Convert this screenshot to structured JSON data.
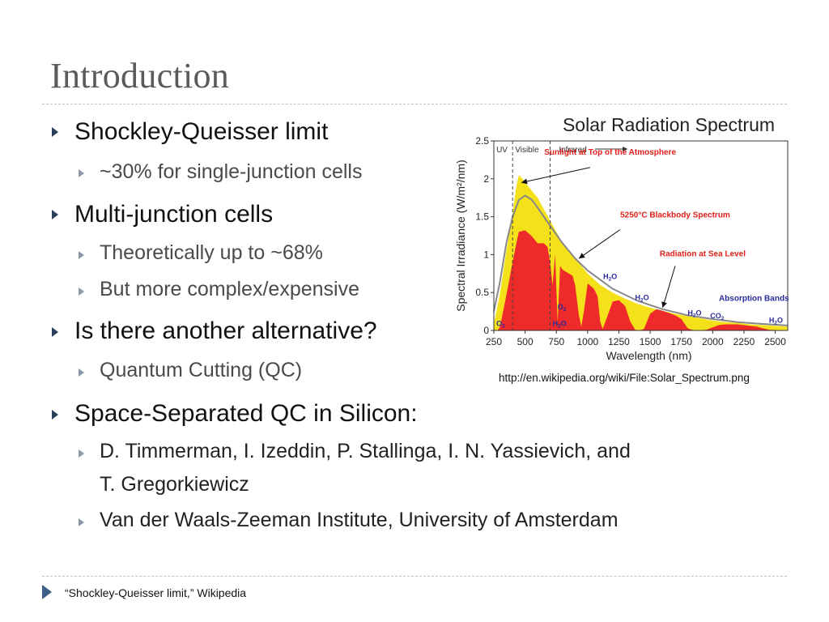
{
  "slide": {
    "title": "Introduction",
    "bullets": {
      "b1": "Shockley-Queisser limit",
      "b1_1": "~30% for single-junction cells",
      "b2": "Multi-junction cells",
      "b2_1": "Theoretically up to ~68%",
      "b2_2": "But more complex/expensive",
      "b3": "Is there another alternative?",
      "b3_1": "Quantum Cutting (QC)",
      "b4": "Space-Separated QC in Silicon:",
      "b4_1_line1": "D. Timmerman, I. Izeddin, P. Stallinga, I. N. Yassievich, and",
      "b4_1_line2": "T. Gregorkiewicz",
      "b4_2": "Van der Waals-Zeeman Institute, University of Amsterdam"
    },
    "image_credit": "http://en.wikipedia.org/wiki/File:Solar_Spectrum.png",
    "footer": "“Shockley-Queisser limit,” Wikipedia"
  },
  "chart_data": {
    "type": "area",
    "title": "Solar Radiation Spectrum",
    "xlabel": "Wavelength (nm)",
    "ylabel": "Spectral Irradiance (W/m²/nm)",
    "xlim": [
      250,
      2600
    ],
    "ylim": [
      0,
      2.5
    ],
    "xticks": [
      "250",
      "500",
      "750",
      "1000",
      "1250",
      "1500",
      "1750",
      "2000",
      "2250",
      "2500"
    ],
    "yticks": [
      "0",
      "0.5",
      "1",
      "1.5",
      "2",
      "2.5"
    ],
    "regions": [
      {
        "label": "UV",
        "from": 250,
        "to": 400
      },
      {
        "label": "Visible",
        "from": 400,
        "to": 700
      },
      {
        "label": "Infrared",
        "from": 700,
        "to": 2600
      }
    ],
    "region_dividers": [
      400,
      700
    ],
    "colors": {
      "top_of_atmosphere": "#f5e11a",
      "sea_level": "#ee2a2a",
      "blackbody": "#888888",
      "label_red": "#e0201a",
      "label_blue": "#2a2a9a"
    },
    "series": [
      {
        "name": "Sunlight at Top of the Atmosphere",
        "x": [
          250,
          300,
          350,
          400,
          430,
          450,
          480,
          500,
          550,
          600,
          650,
          700,
          750,
          800,
          900,
          1000,
          1100,
          1200,
          1300,
          1400,
          1500,
          1600,
          1700,
          1800,
          1900,
          2000,
          2100,
          2200,
          2300,
          2400,
          2500,
          2600
        ],
        "y": [
          0.08,
          0.5,
          1.05,
          1.55,
          1.9,
          2.05,
          2.0,
          1.95,
          1.85,
          1.75,
          1.6,
          1.45,
          1.3,
          1.15,
          0.95,
          0.75,
          0.6,
          0.5,
          0.42,
          0.35,
          0.3,
          0.26,
          0.22,
          0.19,
          0.16,
          0.13,
          0.11,
          0.1,
          0.08,
          0.07,
          0.06,
          0.05
        ]
      },
      {
        "name": "5250°C Blackbody Spectrum",
        "x": [
          250,
          300,
          350,
          400,
          450,
          500,
          550,
          600,
          700,
          800,
          900,
          1000,
          1200,
          1400,
          1600,
          1800,
          2000,
          2200,
          2400,
          2600
        ],
        "y": [
          0.25,
          0.65,
          1.15,
          1.5,
          1.72,
          1.78,
          1.73,
          1.62,
          1.38,
          1.15,
          0.95,
          0.79,
          0.55,
          0.39,
          0.28,
          0.2,
          0.15,
          0.11,
          0.085,
          0.065
        ]
      },
      {
        "name": "Radiation at Sea Level",
        "x": [
          280,
          300,
          330,
          360,
          400,
          430,
          450,
          500,
          550,
          600,
          650,
          680,
          700,
          720,
          740,
          760,
          780,
          800,
          850,
          880,
          900,
          930,
          950,
          970,
          1000,
          1050,
          1080,
          1100,
          1120,
          1150,
          1200,
          1250,
          1300,
          1340,
          1380,
          1420,
          1450,
          1500,
          1550,
          1600,
          1700,
          1750,
          1800,
          1850,
          1900,
          1950,
          2000,
          2050,
          2100,
          2200,
          2300,
          2350,
          2400,
          2450,
          2500,
          2550,
          2600
        ],
        "y": [
          0,
          0.05,
          0.3,
          0.55,
          0.9,
          1.15,
          1.3,
          1.32,
          1.25,
          1.15,
          1.15,
          1.1,
          0.9,
          0.6,
          1.0,
          0.1,
          0.85,
          0.8,
          0.75,
          0.72,
          0.6,
          0.2,
          0.05,
          0.25,
          0.62,
          0.55,
          0.45,
          0.12,
          0.02,
          0.15,
          0.38,
          0.4,
          0.32,
          0.12,
          0.01,
          0.0,
          0.02,
          0.22,
          0.28,
          0.26,
          0.2,
          0.15,
          0.03,
          0.0,
          0.0,
          0.01,
          0.04,
          0.07,
          0.08,
          0.08,
          0.06,
          0.05,
          0.03,
          0.01,
          0.005,
          0.002,
          0.0
        ]
      }
    ],
    "annotations": [
      {
        "text": "Sunlight at Top of the Atmosphere",
        "color": "red",
        "arrow_to": [
          470,
          1.95
        ]
      },
      {
        "text": "5250°C Blackbody Spectrum",
        "color": "red",
        "arrow_to": [
          930,
          0.95
        ]
      },
      {
        "text": "Radiation at Sea Level",
        "color": "red",
        "arrow_to": [
          1600,
          0.3
        ]
      },
      {
        "text": "Absorption Bands",
        "color": "blue"
      }
    ],
    "absorption_labels": [
      {
        "main": "O",
        "sub": "3",
        "x": 270,
        "y": 0.06
      },
      {
        "main": "O",
        "sub": "2",
        "x": 760,
        "y": 0.28
      },
      {
        "main": "H",
        "sub": "2",
        "tail": "O",
        "x": 720,
        "y": 0.06
      },
      {
        "main": "H",
        "sub": "2",
        "tail": "O",
        "x": 1125,
        "y": 0.68
      },
      {
        "main": "H",
        "sub": "2",
        "tail": "O",
        "x": 1380,
        "y": 0.4
      },
      {
        "main": "H",
        "sub": "2",
        "tail": "O",
        "x": 1800,
        "y": 0.2
      },
      {
        "main": "CO",
        "sub": "2",
        "x": 1980,
        "y": 0.16
      },
      {
        "main": "H",
        "sub": "2",
        "tail": "O",
        "x": 2450,
        "y": 0.1
      }
    ]
  }
}
